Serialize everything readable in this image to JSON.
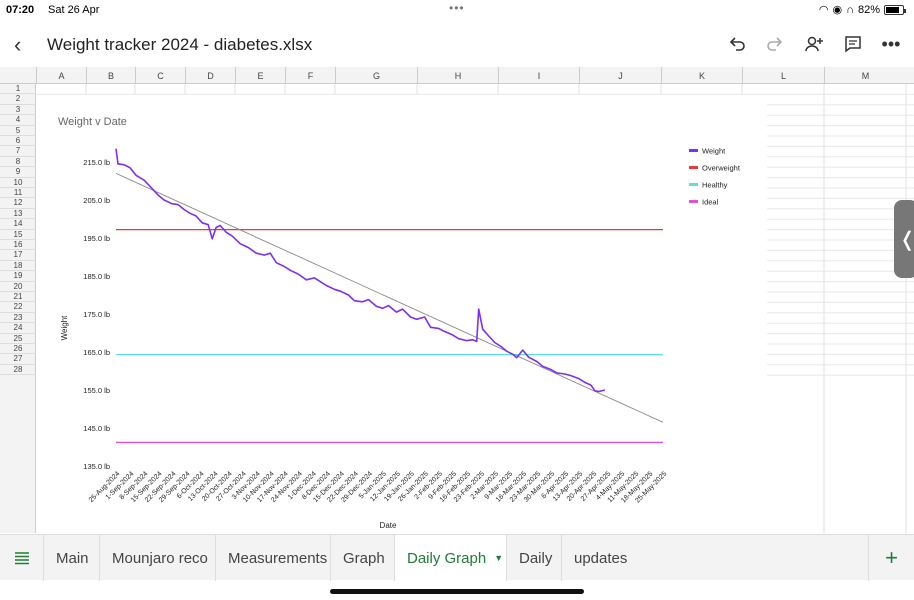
{
  "status": {
    "time": "07:20",
    "date": "Sat 26 Apr",
    "battery": "82%",
    "battery_level": 0.82
  },
  "header": {
    "title": "Weight tracker 2024 - diabetes.xlsx"
  },
  "columns": [
    "A",
    "B",
    "C",
    "D",
    "E",
    "F",
    "G",
    "H",
    "I",
    "J",
    "K",
    "L",
    "M"
  ],
  "rows": [
    "1",
    "2",
    "3",
    "4",
    "5",
    "6",
    "7",
    "8",
    "9",
    "10",
    "11",
    "12",
    "13",
    "14",
    "15",
    "16",
    "17",
    "18",
    "19",
    "20",
    "21",
    "22",
    "23",
    "24",
    "25",
    "26",
    "27",
    "28"
  ],
  "tabs": [
    {
      "label": "Main",
      "active": false
    },
    {
      "label": "Mounjaro reco",
      "active": false
    },
    {
      "label": "Measurements",
      "active": false
    },
    {
      "label": "Graph",
      "active": false
    },
    {
      "label": "Daily Graph",
      "active": true
    },
    {
      "label": "Daily",
      "active": false
    },
    {
      "label": "updates",
      "active": false
    }
  ],
  "chart_data": {
    "type": "line",
    "title": "Weight v Date",
    "xlabel": "Date",
    "ylabel": "Weight",
    "ylim": [
      135,
      215
    ],
    "yticks": [
      "215.0 lb",
      "205.0 lb",
      "195.0 lb",
      "185.0 lb",
      "175.0 lb",
      "165.0 lb",
      "155.0 lb",
      "145.0 lb",
      "135.0 lb"
    ],
    "xlim": [
      "2024-08-25",
      "2025-05-25"
    ],
    "x_ticks": [
      "25-Aug-2024",
      "1-Sep-2024",
      "8-Sep-2024",
      "15-Sep-2024",
      "22-Sep-2024",
      "29-Sep-2024",
      "6-Oct-2024",
      "13-Oct-2024",
      "20-Oct-2024",
      "27-Oct-2024",
      "3-Nov-2024",
      "10-Nov-2024",
      "17-Nov-2024",
      "24-Nov-2024",
      "1-Dec-2024",
      "8-Dec-2024",
      "15-Dec-2024",
      "22-Dec-2024",
      "29-Dec-2024",
      "5-Jan-2025",
      "12-Jan-2025",
      "19-Jan-2025",
      "26-Jan-2025",
      "2-Feb-2025",
      "9-Feb-2025",
      "16-Feb-2025",
      "23-Feb-2025",
      "2-Mar-2025",
      "9-Mar-2025",
      "16-Mar-2025",
      "23-Mar-2025",
      "30-Mar-2025",
      "6-Apr-2025",
      "13-Apr-2025",
      "20-Apr-2025",
      "27-Apr-2025",
      "4-May-2025",
      "11-May-2025",
      "18-May-2025",
      "25-May-2025"
    ],
    "legend_position": "right",
    "series": [
      {
        "name": "Weight",
        "color": "#7b2ff7",
        "kind": "line",
        "points": [
          [
            "2024-08-25",
            218.5
          ],
          [
            "2024-08-26",
            214.5
          ],
          [
            "2024-08-29",
            214.3
          ],
          [
            "2024-09-01",
            213.5
          ],
          [
            "2024-09-04",
            211.5
          ],
          [
            "2024-09-08",
            210.2
          ],
          [
            "2024-09-12",
            208.0
          ],
          [
            "2024-09-15",
            206.3
          ],
          [
            "2024-09-18",
            205.0
          ],
          [
            "2024-09-22",
            204.0
          ],
          [
            "2024-09-25",
            203.8
          ],
          [
            "2024-09-28",
            202.5
          ],
          [
            "2024-10-01",
            201.5
          ],
          [
            "2024-10-04",
            200.8
          ],
          [
            "2024-10-07",
            199.0
          ],
          [
            "2024-10-10",
            198.5
          ],
          [
            "2024-10-12",
            194.8
          ],
          [
            "2024-10-14",
            197.8
          ],
          [
            "2024-10-16",
            198.3
          ],
          [
            "2024-10-19",
            196.5
          ],
          [
            "2024-10-22",
            195.5
          ],
          [
            "2024-10-26",
            193.5
          ],
          [
            "2024-10-30",
            192.5
          ],
          [
            "2024-11-03",
            191.0
          ],
          [
            "2024-11-07",
            190.5
          ],
          [
            "2024-11-10",
            191.0
          ],
          [
            "2024-11-13",
            188.5
          ],
          [
            "2024-11-17",
            187.5
          ],
          [
            "2024-11-20",
            186.5
          ],
          [
            "2024-11-24",
            185.5
          ],
          [
            "2024-11-28",
            184.0
          ],
          [
            "2024-12-02",
            184.5
          ],
          [
            "2024-12-05",
            183.5
          ],
          [
            "2024-12-08",
            182.5
          ],
          [
            "2024-12-12",
            181.5
          ],
          [
            "2024-12-15",
            181.0
          ],
          [
            "2024-12-19",
            180.0
          ],
          [
            "2024-12-22",
            178.5
          ],
          [
            "2024-12-26",
            178.2
          ],
          [
            "2024-12-29",
            178.8
          ],
          [
            "2025-01-02",
            177.0
          ],
          [
            "2025-01-05",
            176.5
          ],
          [
            "2025-01-08",
            177.2
          ],
          [
            "2025-01-12",
            175.5
          ],
          [
            "2025-01-15",
            176.3
          ],
          [
            "2025-01-19",
            174.2
          ],
          [
            "2025-01-22",
            173.6
          ],
          [
            "2025-01-26",
            174.2
          ],
          [
            "2025-01-29",
            171.5
          ],
          [
            "2025-02-02",
            171.2
          ],
          [
            "2025-02-05",
            170.4
          ],
          [
            "2025-02-09",
            169.5
          ],
          [
            "2025-02-12",
            168.5
          ],
          [
            "2025-02-16",
            168.0
          ],
          [
            "2025-02-19",
            168.2
          ],
          [
            "2025-02-21",
            167.8
          ],
          [
            "2025-02-22",
            176.3
          ],
          [
            "2025-02-24",
            171.0
          ],
          [
            "2025-02-27",
            169.2
          ],
          [
            "2025-03-02",
            167.5
          ],
          [
            "2025-03-05",
            166.5
          ],
          [
            "2025-03-08",
            165.2
          ],
          [
            "2025-03-11",
            164.4
          ],
          [
            "2025-03-13",
            163.5
          ],
          [
            "2025-03-16",
            165.5
          ],
          [
            "2025-03-19",
            163.6
          ],
          [
            "2025-03-23",
            162.5
          ],
          [
            "2025-03-26",
            161.2
          ],
          [
            "2025-03-30",
            160.4
          ],
          [
            "2025-04-02",
            159.5
          ],
          [
            "2025-04-06",
            159.2
          ],
          [
            "2025-04-09",
            158.8
          ],
          [
            "2025-04-13",
            158.0
          ],
          [
            "2025-04-16",
            157.0
          ],
          [
            "2025-04-19",
            156.3
          ],
          [
            "2025-04-21",
            154.8
          ],
          [
            "2025-04-23",
            154.6
          ],
          [
            "2025-04-26",
            155.0
          ]
        ]
      },
      {
        "name": "Overweight",
        "color": "#e33b3b",
        "kind": "hline",
        "value": 197.2
      },
      {
        "name": "Healthy",
        "color": "#5ce0e6",
        "kind": "hline",
        "value": 164.3
      },
      {
        "name": "Ideal",
        "color": "#e34fd6",
        "kind": "hline",
        "value": 141.2
      }
    ],
    "trendline": {
      "color": "#888888",
      "points": [
        [
          "2024-08-25",
          212.0
        ],
        [
          "2025-05-25",
          146.5
        ]
      ]
    }
  }
}
